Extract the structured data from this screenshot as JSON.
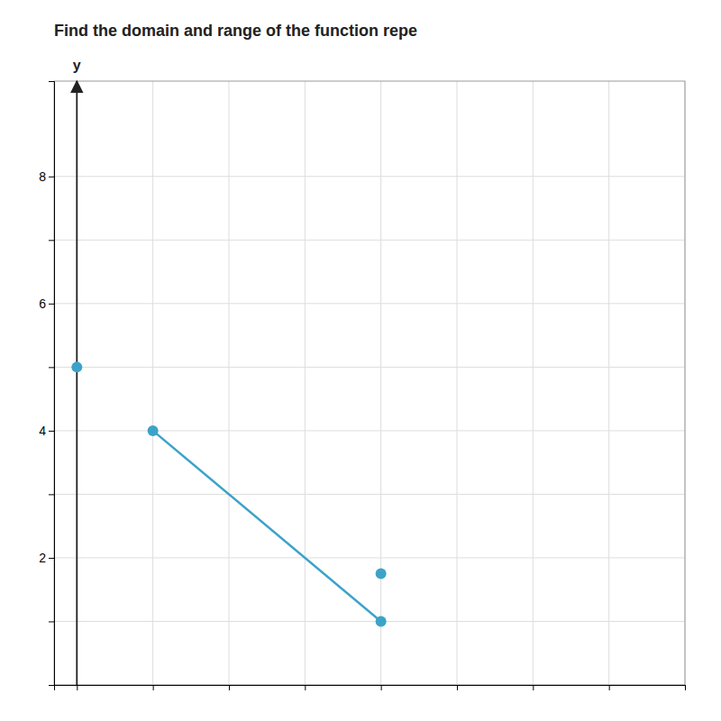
{
  "chart_data": {
    "type": "line",
    "title": "Find the domain and range of the function repe",
    "ylabel": "y",
    "xlim": [
      -0.3,
      8
    ],
    "ylim": [
      0,
      9.5
    ],
    "xticks": [
      0,
      1,
      2,
      3,
      4,
      5,
      6,
      7,
      8
    ],
    "yticks": [
      {
        "value": 0,
        "label": null
      },
      {
        "value": 1,
        "label": null
      },
      2,
      {
        "value": 3,
        "label": null
      },
      4,
      {
        "value": 5,
        "label": null
      },
      6,
      {
        "value": 7,
        "label": null
      },
      8
    ],
    "tick_labels": "y",
    "grid": true,
    "series": [
      {
        "type": "line",
        "marker": "circle",
        "color": "#3ca3c8",
        "x": [
          1,
          4
        ],
        "values": [
          4,
          1
        ]
      },
      {
        "type": "scatter",
        "marker": "circle",
        "color": "#3ca3c8",
        "x": [
          0,
          4
        ],
        "values": [
          5,
          1.75
        ]
      }
    ]
  }
}
